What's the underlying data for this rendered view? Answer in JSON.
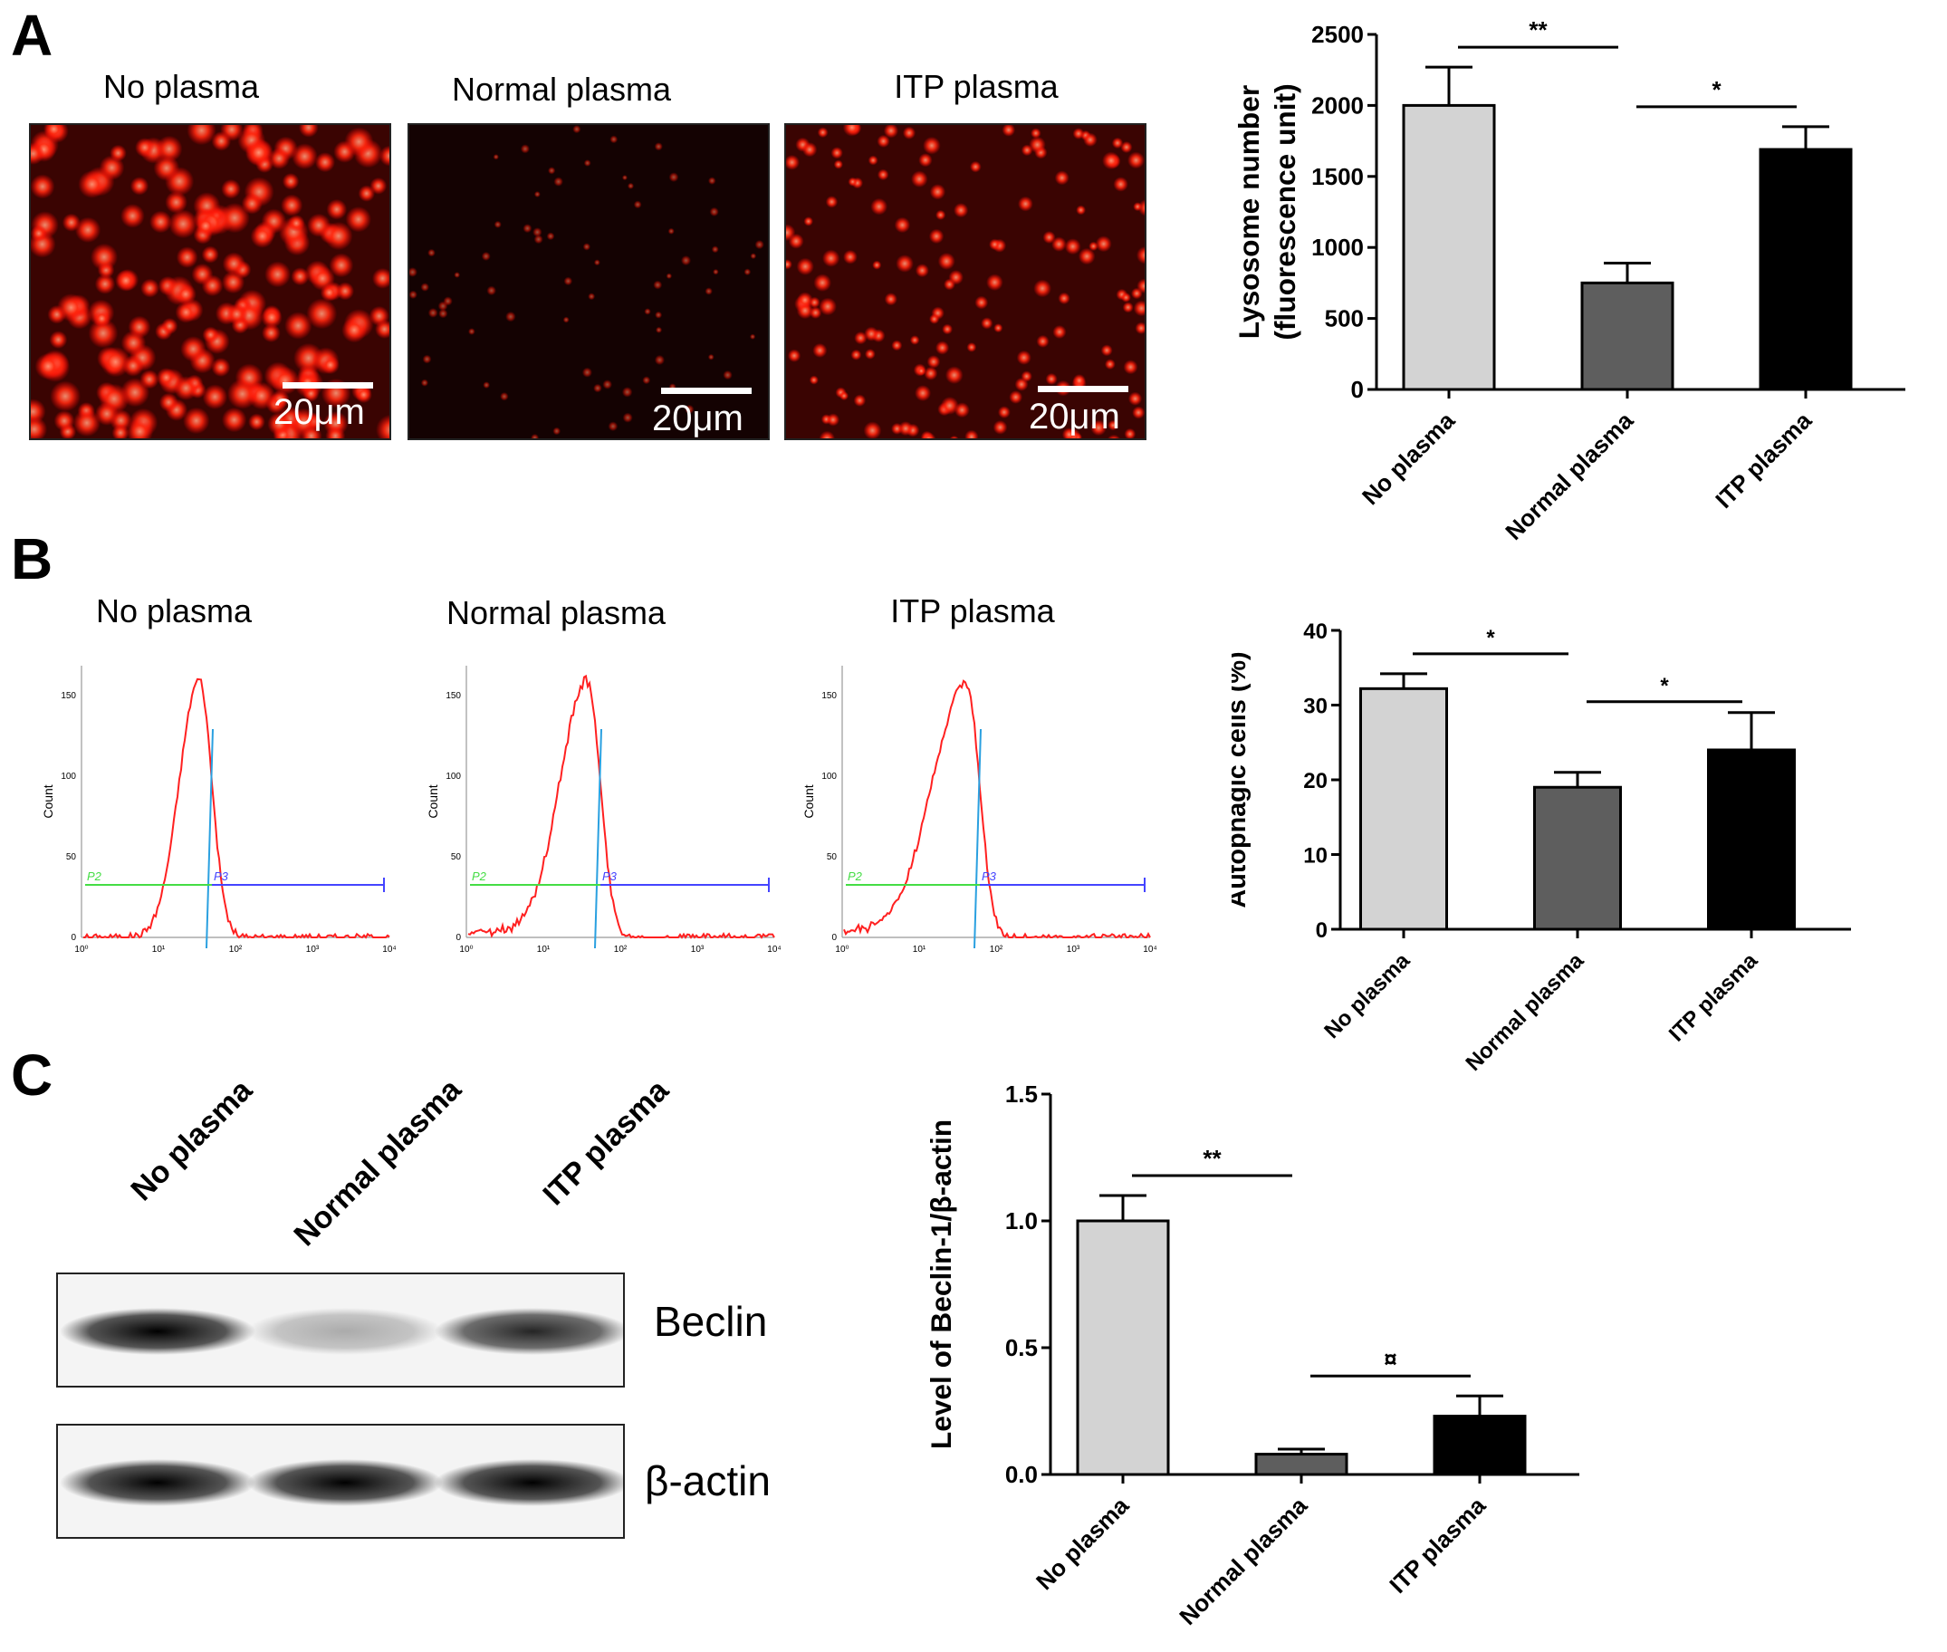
{
  "panels": {
    "a": {
      "letter": "A",
      "images": [
        {
          "title": "No plasma",
          "scale": "20μm",
          "density": "high"
        },
        {
          "title": "Normal plasma",
          "scale": "20μm",
          "density": "low"
        },
        {
          "title": "ITP plasma",
          "scale": "20μm",
          "density": "medium"
        }
      ]
    },
    "b": {
      "letter": "B",
      "histograms": [
        {
          "title": "No plasma",
          "ylabel": "Count",
          "yticks": [
            "0",
            "50",
            "100",
            "150"
          ],
          "xticks": [
            "10⁰",
            "10¹",
            "10²",
            "10³",
            "10⁴"
          ],
          "gates": [
            "P2",
            "P3"
          ]
        },
        {
          "title": "Normal plasma",
          "ylabel": "Count",
          "yticks": [
            "0",
            "50",
            "100",
            "150"
          ],
          "xticks": [
            "10⁰",
            "10¹",
            "10²",
            "10³",
            "10⁴"
          ],
          "gates": [
            "P2",
            "P3"
          ]
        },
        {
          "title": "ITP plasma",
          "ylabel": "Count",
          "yticks": [
            "0",
            "50",
            "100",
            "150"
          ],
          "xticks": [
            "10⁰",
            "10¹",
            "10²",
            "10³",
            "10⁴"
          ],
          "gates": [
            "P2",
            "P3"
          ]
        }
      ]
    },
    "c": {
      "letter": "C",
      "lanes": [
        "No plasma",
        "Normal plasma",
        "ITP plasma"
      ],
      "bands": [
        "Beclin",
        "β-actin"
      ]
    }
  },
  "colors": {
    "no_plasma": "#d3d3d3",
    "normal_plasma": "#5e5e5e",
    "itp_plasma": "#000000",
    "gate_p2": "#44dd44",
    "gate_p3": "#4444ff",
    "histogram": "#ff2020",
    "cursor": "#2aa0e0"
  },
  "chart_data": [
    {
      "type": "bar",
      "categories": [
        "No plasma",
        "Normal plasma",
        "ITP plasma"
      ],
      "values": [
        2000,
        750,
        1690
      ],
      "errors": [
        270,
        140,
        160
      ],
      "ylabel": "Lysosome number\n(fluorescence unit)",
      "ylim": [
        0,
        2500
      ],
      "yticks": [
        "0",
        "500",
        "1000",
        "1500",
        "2000",
        "2500"
      ],
      "significance": [
        {
          "from": 0,
          "to": 1,
          "label": "**"
        },
        {
          "from": 1,
          "to": 2,
          "label": "*"
        }
      ]
    },
    {
      "type": "bar",
      "categories": [
        "No plasma",
        "Normal plasma",
        "ITP plasma"
      ],
      "values": [
        32.2,
        19,
        24
      ],
      "errors": [
        2,
        2,
        5
      ],
      "ylabel": "Autophagic cells (%)",
      "ylim": [
        0,
        40
      ],
      "yticks": [
        "0",
        "10",
        "20",
        "30",
        "40"
      ],
      "significance": [
        {
          "from": 0,
          "to": 1,
          "label": "*"
        },
        {
          "from": 1,
          "to": 2,
          "label": "*"
        }
      ]
    },
    {
      "type": "bar",
      "categories": [
        "No plasma",
        "Normal plasma",
        "ITP plasma"
      ],
      "values": [
        1.0,
        0.08,
        0.23
      ],
      "errors": [
        0.1,
        0.02,
        0.08
      ],
      "ylabel": "Level of Beclin-1/β-actin",
      "ylim": [
        0,
        1.5
      ],
      "yticks": [
        "0.0",
        "0.5",
        "1.0",
        "1.5"
      ],
      "significance": [
        {
          "from": 0,
          "to": 1,
          "label": "**"
        },
        {
          "from": 1,
          "to": 2,
          "label": "¤"
        }
      ]
    }
  ]
}
